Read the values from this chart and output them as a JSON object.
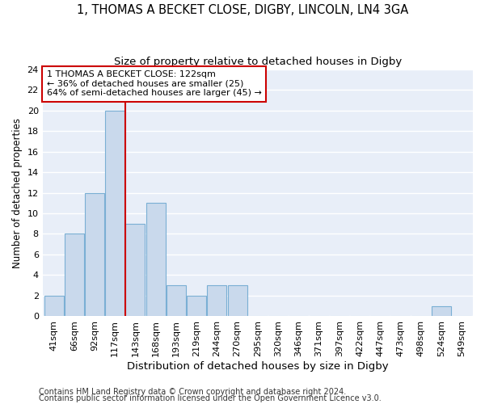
{
  "title1": "1, THOMAS A BECKET CLOSE, DIGBY, LINCOLN, LN4 3GA",
  "title2": "Size of property relative to detached houses in Digby",
  "xlabel": "Distribution of detached houses by size in Digby",
  "ylabel": "Number of detached properties",
  "categories": [
    "41sqm",
    "66sqm",
    "92sqm",
    "117sqm",
    "143sqm",
    "168sqm",
    "193sqm",
    "219sqm",
    "244sqm",
    "270sqm",
    "295sqm",
    "320sqm",
    "346sqm",
    "371sqm",
    "397sqm",
    "422sqm",
    "447sqm",
    "473sqm",
    "498sqm",
    "524sqm",
    "549sqm"
  ],
  "values": [
    2,
    8,
    12,
    20,
    9,
    11,
    3,
    2,
    3,
    3,
    0,
    0,
    0,
    0,
    0,
    0,
    0,
    0,
    0,
    1,
    0
  ],
  "bar_color": "#c9d9ec",
  "bar_edgecolor": "#7aafd4",
  "redline_index": 3.5,
  "annotation_text": "1 THOMAS A BECKET CLOSE: 122sqm\n← 36% of detached houses are smaller (25)\n64% of semi-detached houses are larger (45) →",
  "annotation_box_color": "#ffffff",
  "annotation_box_edgecolor": "#cc0000",
  "redline_color": "#cc0000",
  "ylim": [
    0,
    24
  ],
  "yticks": [
    0,
    2,
    4,
    6,
    8,
    10,
    12,
    14,
    16,
    18,
    20,
    22,
    24
  ],
  "footnote1": "Contains HM Land Registry data © Crown copyright and database right 2024.",
  "footnote2": "Contains public sector information licensed under the Open Government Licence v3.0.",
  "fig_bg": "#ffffff",
  "plot_bg": "#e8eef8",
  "grid_color": "#ffffff",
  "title1_fontsize": 10.5,
  "title2_fontsize": 9.5,
  "xlabel_fontsize": 9.5,
  "ylabel_fontsize": 8.5,
  "tick_fontsize": 8,
  "annotation_fontsize": 8,
  "footnote_fontsize": 7
}
